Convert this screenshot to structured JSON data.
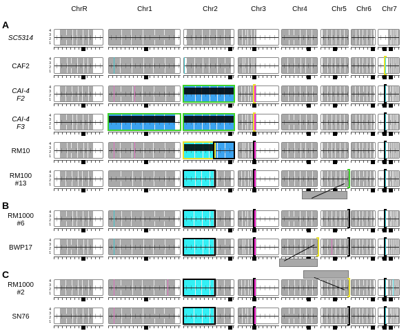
{
  "figure": {
    "sections": [
      "A",
      "B",
      "C"
    ],
    "chromosomes": [
      "ChrR",
      "Chr1",
      "Chr2",
      "Chr3",
      "Chr4",
      "Chr5",
      "Chr6",
      "Chr7"
    ],
    "y_axis_ticks": [
      "4",
      "3",
      "2",
      "1"
    ],
    "rows": [
      {
        "label_line1": "SC5314",
        "label_line2": "",
        "italic": true,
        "section": "A"
      },
      {
        "label_line1": "CAF2",
        "label_line2": "",
        "italic": false,
        "section": "A"
      },
      {
        "label_line1": "CAI-4",
        "label_line2": "F2",
        "italic": true,
        "section": "A"
      },
      {
        "label_line1": "CAI-4",
        "label_line2": "F3",
        "italic": true,
        "section": "A"
      },
      {
        "label_line1": "RM10",
        "label_line2": "",
        "italic": false,
        "section": "A"
      },
      {
        "label_line1": "RM100",
        "label_line2": "#13",
        "italic": false,
        "section": "A"
      },
      {
        "label_line1": "RM1000",
        "label_line2": "#6",
        "italic": false,
        "section": "B"
      },
      {
        "label_line1": "BWP17",
        "label_line2": "",
        "italic": false,
        "section": "B"
      },
      {
        "label_line1": "RM1000",
        "label_line2": "#2",
        "italic": false,
        "section": "C"
      },
      {
        "label_line1": "SN76",
        "label_line2": "",
        "italic": false,
        "section": "C"
      }
    ],
    "colors": {
      "homolog_gray": "#a9a9a9",
      "trisomy_blue": "#3ba3f0",
      "monosomy_cyan": "#33f0f5",
      "loh_magenta": "#ff2ad4",
      "box_green": "#3fd12a",
      "box_yellow": "#e8e02a",
      "box_black": "#000000"
    }
  }
}
